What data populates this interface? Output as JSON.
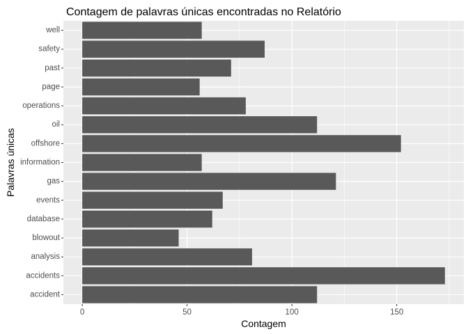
{
  "chart_data": {
    "type": "bar",
    "orientation": "horizontal",
    "title": "Contagem de palavras únicas encontradas no Relatório",
    "xlabel": "Contagem",
    "ylabel": "Palavras únicas",
    "categories": [
      "accident",
      "accidents",
      "analysis",
      "blowout",
      "database",
      "events",
      "gas",
      "information",
      "offshore",
      "oil",
      "operations",
      "page",
      "past",
      "safety",
      "well"
    ],
    "values": [
      112,
      173,
      81,
      46,
      62,
      67,
      121,
      57,
      152,
      112,
      78,
      56,
      71,
      87,
      57
    ],
    "xlim": [
      -9,
      182
    ],
    "xticks": [
      0,
      50,
      100,
      150
    ],
    "grid": true,
    "colors": {
      "bar": "#595959",
      "panel": "#ebebeb",
      "grid_major": "#ffffff",
      "tick_text": "#4d4d4d",
      "tick_mark": "#333333"
    }
  }
}
